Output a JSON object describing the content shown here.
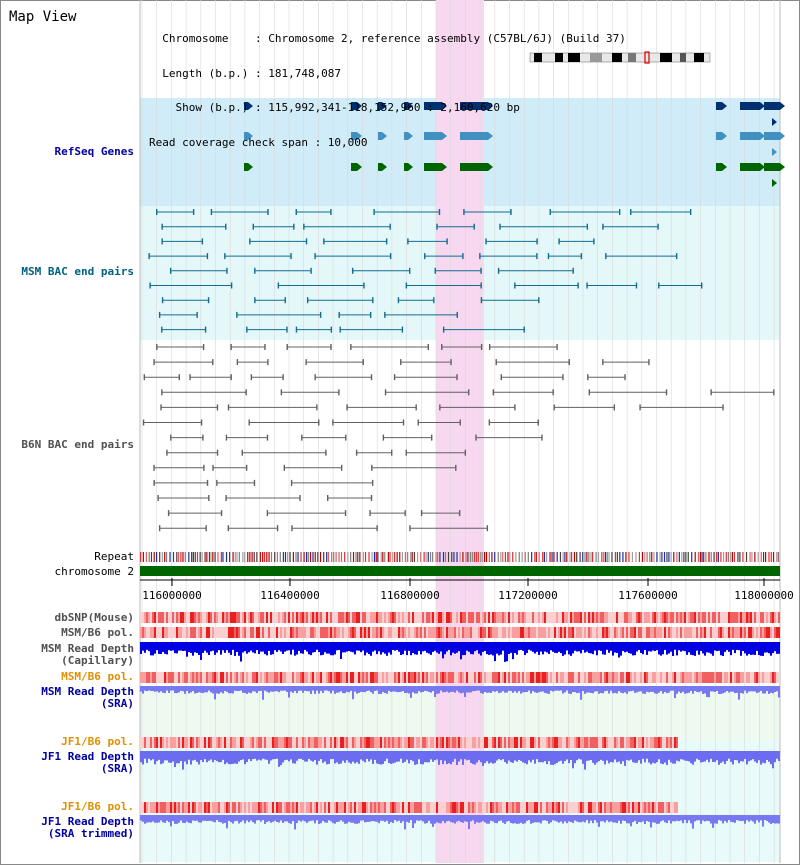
{
  "header": {
    "title": "Map View",
    "info_lines": [
      "  Chromosome    : Chromosome 2, reference assembly (C57BL/6J) (Build 37)",
      "  Length (b.p.) : 181,748,087",
      "    Show (b.p.) : 115,992,341-118,152,960 : 2,160,620 bp",
      "Read coverage check span : 10,000"
    ]
  },
  "tracks": {
    "refseq": "RefSeq Genes",
    "msm_bac": "MSM BAC end pairs",
    "b6n_bac": "B6N BAC end pairs",
    "repeat": "Repeat",
    "chromosome": "chromosome 2",
    "dbsnp": "dbSNP(Mouse)",
    "msm_b6_pol_1": "MSM/B6 pol.",
    "msm_read_depth_cap": "MSM Read Depth\n(Capillary)",
    "msm_b6_pol_2": "MSM/B6 pol.",
    "msm_read_depth_sra": "MSM Read Depth\n(SRA)",
    "jf1_b6_pol_1": "JF1/B6 pol.",
    "jf1_read_depth_sra": "JF1 Read Depth\n(SRA)",
    "jf1_b6_pol_2": "JF1/B6 pol.",
    "jf1_read_depth_trim": "JF1 Read Depth\n(SRA trimmed)"
  },
  "axis": {
    "ticks": [
      "116000000",
      "116400000",
      "116800000",
      "117200000",
      "117600000",
      "118000000"
    ]
  },
  "colors": {
    "highlight": "#f8d8f0",
    "refseq_bg": "#d0ecf8",
    "bac_bg": "#e4f8fa",
    "gene_dark": "#003070",
    "gene_mid": "#4090c0",
    "gene_green": "#006400",
    "chromosome_bar": "#006400",
    "depth_dark": "#0000e0",
    "depth_light": "#7070f0"
  }
}
